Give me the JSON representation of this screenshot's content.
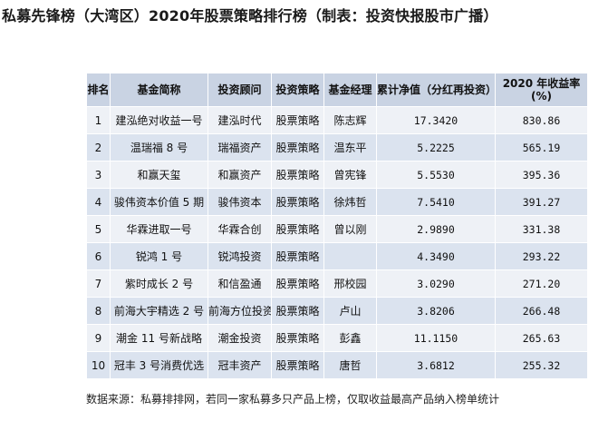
{
  "title": "私募先锋榜（大湾区）2020年股票策略排行榜（制表：投资快报股市广播）",
  "table": {
    "headers": {
      "rank": "排名",
      "fund_name": "基金简称",
      "advisor": "投资顾问",
      "strategy": "投资策略",
      "manager": "基金经理",
      "nav": "累计净值（分红再投资）",
      "return_line1": "2020 年收益率",
      "return_line2": "(%)"
    },
    "rows": [
      {
        "rank": "1",
        "fund_name": "建泓绝对收益一号",
        "advisor": "建泓时代",
        "strategy": "股票策略",
        "manager": "陈志辉",
        "nav": "17.3420",
        "return": "830.86"
      },
      {
        "rank": "2",
        "fund_name": "温瑞福 8 号",
        "advisor": "瑞福资产",
        "strategy": "股票策略",
        "manager": "温东平",
        "nav": "5.2225",
        "return": "565.19"
      },
      {
        "rank": "3",
        "fund_name": "和赢天玺",
        "advisor": "和赢资产",
        "strategy": "股票策略",
        "manager": "曾宪锋",
        "nav": "5.5530",
        "return": "395.36"
      },
      {
        "rank": "4",
        "fund_name": "骏伟资本价值 5 期",
        "advisor": "骏伟资本",
        "strategy": "股票策略",
        "manager": "徐炜哲",
        "nav": "7.5410",
        "return": "391.27"
      },
      {
        "rank": "5",
        "fund_name": "华霖进取一号",
        "advisor": "华霖合创",
        "strategy": "股票策略",
        "manager": "曾以刚",
        "nav": "2.9890",
        "return": "331.38"
      },
      {
        "rank": "6",
        "fund_name": "锐鸿 1 号",
        "advisor": "锐鸿投资",
        "strategy": "股票策略",
        "manager": "",
        "nav": "4.3490",
        "return": "293.22"
      },
      {
        "rank": "7",
        "fund_name": "紫时成长 2 号",
        "advisor": "和信盈通",
        "strategy": "股票策略",
        "manager": "邢校园",
        "nav": "3.0290",
        "return": "271.20"
      },
      {
        "rank": "8",
        "fund_name": "前海大宇精选 2 号",
        "advisor": "前海方位投资",
        "strategy": "股票策略",
        "manager": "卢山",
        "nav": "3.8206",
        "return": "266.48"
      },
      {
        "rank": "9",
        "fund_name": "潮金 11 号新战略",
        "advisor": "潮金投资",
        "strategy": "股票策略",
        "manager": "彭鑫",
        "nav": "11.1150",
        "return": "265.63"
      },
      {
        "rank": "10",
        "fund_name": "冠丰 3 号消费优选",
        "advisor": "冠丰资产",
        "strategy": "股票策略",
        "manager": "唐哲",
        "nav": "3.6812",
        "return": "255.32"
      }
    ]
  },
  "footnote": "数据来源：私募排排网，若同一家私募多只产品上榜，仅取收益最高产品纳入榜单统计"
}
